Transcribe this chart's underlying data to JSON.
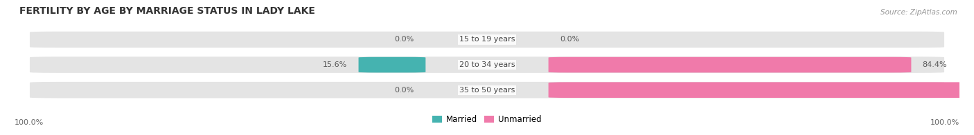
{
  "title": "FERTILITY BY AGE BY MARRIAGE STATUS IN LADY LAKE",
  "source": "Source: ZipAtlas.com",
  "categories_display_order": [
    "15 to 19 years",
    "20 to 34 years",
    "35 to 50 years"
  ],
  "married_pct_display_order": [
    0.0,
    15.6,
    0.0
  ],
  "unmarried_pct_display_order": [
    0.0,
    84.4,
    100.0
  ],
  "married_color": "#45b3b0",
  "unmarried_color": "#f07aaa",
  "bar_bg_color": "#e4e4e4",
  "bar_bg_edge_color": "#ffffff",
  "left_axis_label": "100.0%",
  "right_axis_label": "100.0%",
  "title_fontsize": 10,
  "label_fontsize": 8,
  "source_fontsize": 7.5,
  "tick_fontsize": 8,
  "figsize": [
    14.06,
    1.96
  ],
  "dpi": 100
}
